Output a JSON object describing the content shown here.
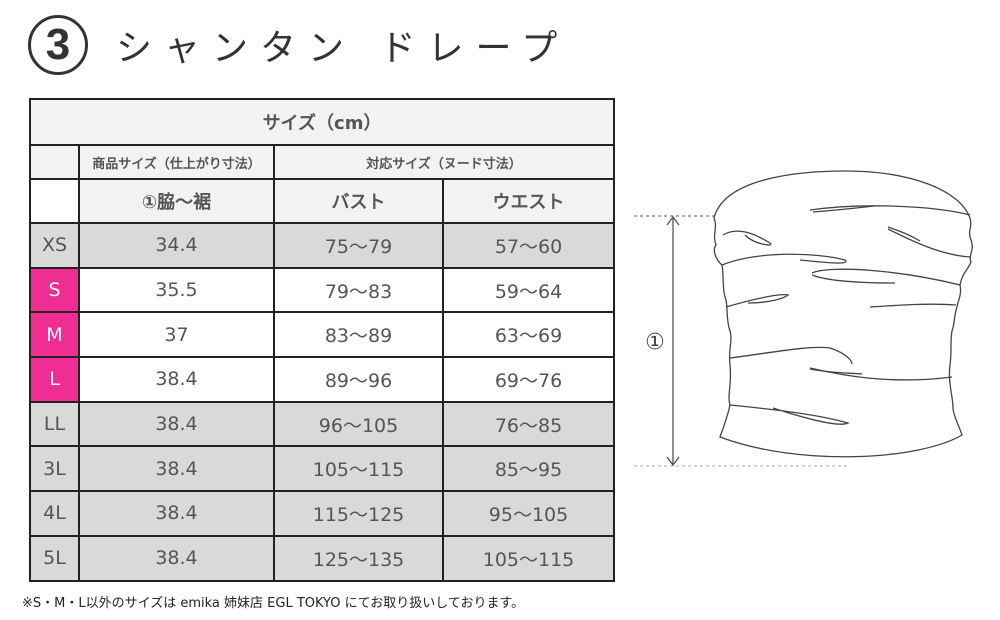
{
  "title": {
    "number": "3",
    "text": "シャンタン ドレープ"
  },
  "table": {
    "header": "サイズ（cm）",
    "group_product": "商品サイズ（仕上がり寸法）",
    "group_body": "対応サイズ（ヌード寸法）",
    "col_length": "①脇～裾",
    "col_bust": "バスト",
    "col_waist": "ウエスト",
    "rows": [
      {
        "size": "XS",
        "length": "34.4",
        "bust": "75～79",
        "waist": "57～60",
        "highlight": false
      },
      {
        "size": "S",
        "length": "35.5",
        "bust": "79～83",
        "waist": "59～64",
        "highlight": true
      },
      {
        "size": "M",
        "length": "37",
        "bust": "83～89",
        "waist": "63～69",
        "highlight": true
      },
      {
        "size": "L",
        "length": "38.4",
        "bust": "89～96",
        "waist": "69～76",
        "highlight": true
      },
      {
        "size": "LL",
        "length": "38.4",
        "bust": "96～105",
        "waist": "76～85",
        "highlight": false
      },
      {
        "size": "3L",
        "length": "38.4",
        "bust": "105～115",
        "waist": "85～95",
        "highlight": false
      },
      {
        "size": "4L",
        "length": "38.4",
        "bust": "115～125",
        "waist": "95～105",
        "highlight": false
      },
      {
        "size": "5L",
        "length": "38.4",
        "bust": "125～135",
        "waist": "105～115",
        "highlight": false
      }
    ]
  },
  "colors": {
    "highlight": "#f02d93",
    "gray_row": "#d9d9d9",
    "header_bg": "#f2f2f2"
  },
  "diagram": {
    "label": "①"
  },
  "note": "※S・M・L以外のサイズは emika 姉妹店 EGL TOKYO にてお取り扱いしております。"
}
